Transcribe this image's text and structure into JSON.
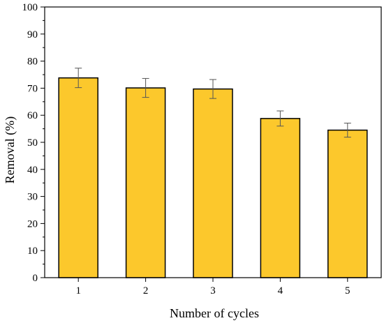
{
  "chart_data": {
    "type": "bar",
    "xlabel": "Number of cycles",
    "ylabel": "Removal (%)",
    "categories": [
      "1",
      "2",
      "3",
      "4",
      "5"
    ],
    "values": [
      73.8,
      70.1,
      69.7,
      58.8,
      54.5
    ],
    "errors": [
      3.6,
      3.5,
      3.5,
      2.8,
      2.6
    ],
    "ylim": [
      0,
      100
    ],
    "yticks": [
      0,
      10,
      20,
      30,
      40,
      50,
      60,
      70,
      80,
      90,
      100
    ],
    "ytick_labels": [
      "0",
      "10",
      "20",
      "30",
      "40",
      "50",
      "60",
      "70",
      "80",
      "90",
      "100"
    ],
    "bar_color": "#FCC82C",
    "bar_edge_color": "#000000",
    "error_bar_color": "#555555",
    "grid": false,
    "legend": "none"
  }
}
